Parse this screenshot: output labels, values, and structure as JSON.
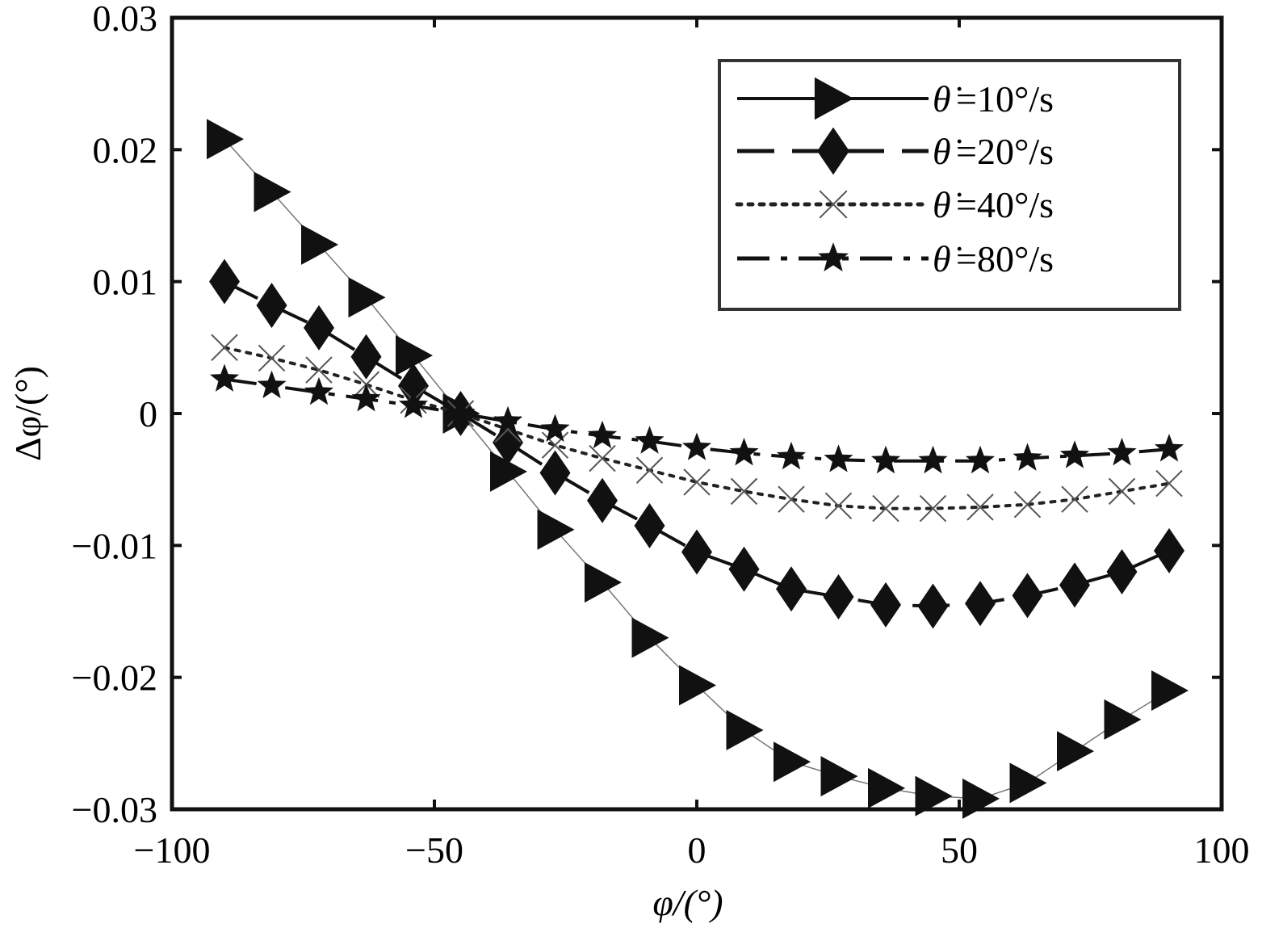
{
  "chart_data": {
    "type": "line",
    "xlabel": "φ/(°)",
    "ylabel": "Δφ/(°)",
    "xlim": [
      -100,
      100
    ],
    "ylim": [
      -0.03,
      0.03
    ],
    "x_ticks": [
      -100,
      -50,
      0,
      50,
      100
    ],
    "x_tick_labels": [
      "−100",
      "−50",
      "0",
      "50",
      "100"
    ],
    "y_ticks": [
      0.03,
      0.02,
      0.01,
      0,
      -0.01,
      -0.02,
      -0.03
    ],
    "y_tick_labels": [
      "0.03",
      "0.02",
      "0.01",
      "0",
      "−0.01",
      "−0.02",
      "−0.03"
    ],
    "grid": false,
    "legend_position": "top-right",
    "x": [
      -90,
      -81,
      -72,
      -63,
      -54,
      -45,
      -36,
      -27,
      -18,
      -9,
      0,
      9,
      18,
      27,
      36,
      45,
      54,
      63,
      72,
      81,
      90
    ],
    "series": [
      {
        "name": "θ̇=10°/s",
        "legend_symbol": "θ̇",
        "legend_value": "=10°/s",
        "marker": "triangle-right",
        "line_style": "solid",
        "values": [
          0.0208,
          0.0168,
          0.0128,
          0.0088,
          0.0044,
          0.0,
          -0.0044,
          -0.0088,
          -0.0128,
          -0.017,
          -0.0206,
          -0.024,
          -0.0264,
          -0.0275,
          -0.0284,
          -0.029,
          -0.0292,
          -0.028,
          -0.0256,
          -0.0232,
          -0.021
        ]
      },
      {
        "name": "θ̇=20°/s",
        "legend_symbol": "θ̇",
        "legend_value": "=20°/s",
        "marker": "diamond",
        "line_style": "dashed",
        "values": [
          0.01,
          0.0082,
          0.0065,
          0.0043,
          0.0021,
          0.0,
          -0.0022,
          -0.0045,
          -0.0066,
          -0.0085,
          -0.0105,
          -0.0118,
          -0.0133,
          -0.0139,
          -0.0145,
          -0.0146,
          -0.0144,
          -0.0138,
          -0.013,
          -0.012,
          -0.0104
        ]
      },
      {
        "name": "θ̇=40°/s",
        "legend_symbol": "θ̇",
        "legend_value": "=40°/s",
        "marker": "x",
        "line_style": "dotted",
        "values": [
          0.005,
          0.0042,
          0.0033,
          0.0022,
          0.001,
          0.0,
          -0.0012,
          -0.0024,
          -0.0034,
          -0.0043,
          -0.0052,
          -0.0059,
          -0.0065,
          -0.007,
          -0.0072,
          -0.0072,
          -0.0071,
          -0.0069,
          -0.0065,
          -0.0059,
          -0.0053
        ]
      },
      {
        "name": "θ̇=80°/s",
        "legend_symbol": "θ̇",
        "legend_value": "=80°/s",
        "marker": "star",
        "line_style": "dashdot",
        "values": [
          0.0026,
          0.0021,
          0.0016,
          0.0011,
          0.0006,
          0.0,
          -0.0006,
          -0.0012,
          -0.0017,
          -0.0021,
          -0.0026,
          -0.003,
          -0.0033,
          -0.0035,
          -0.0036,
          -0.0036,
          -0.0036,
          -0.0034,
          -0.0032,
          -0.003,
          -0.0027
        ]
      }
    ]
  }
}
